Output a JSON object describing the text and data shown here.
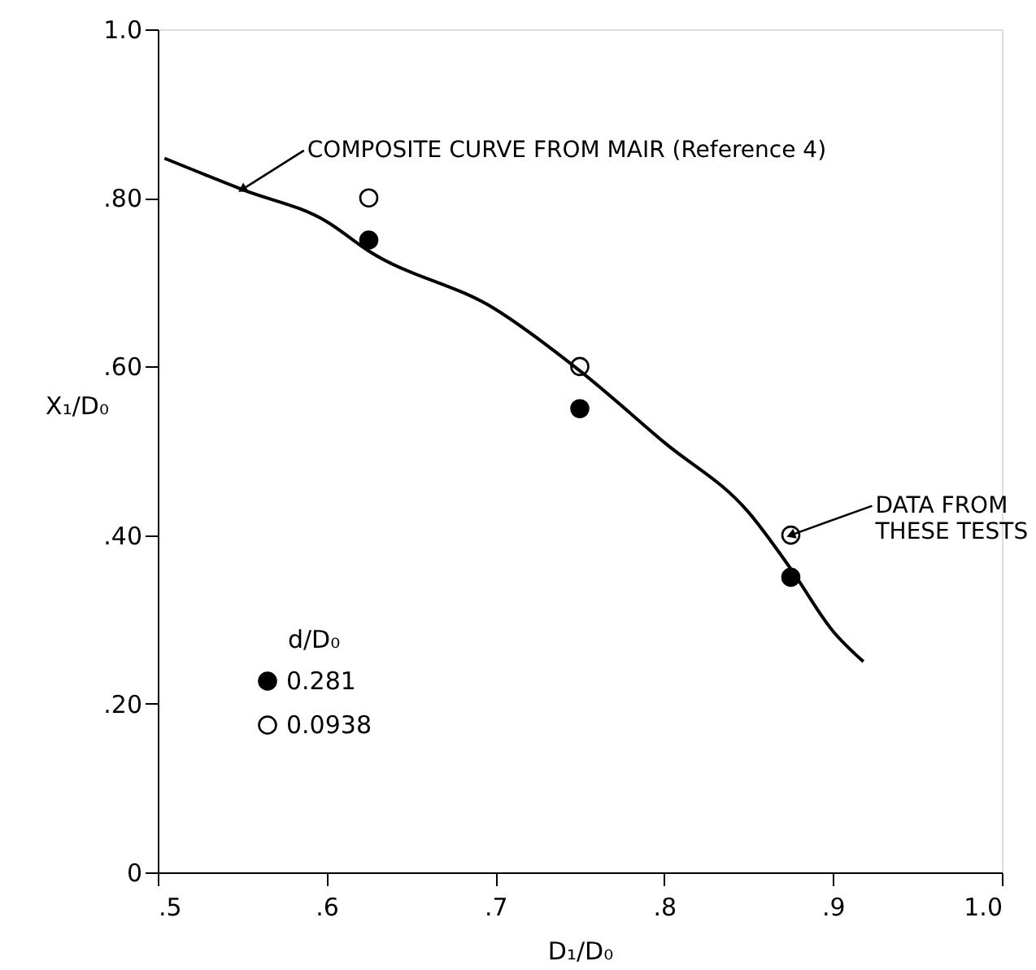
{
  "chart_data": {
    "type": "scatter",
    "xlabel": "D₁/D₀",
    "ylabel": "X₁/D₀",
    "legend_title": "d/D₀",
    "legend": "bottom left",
    "grid": false,
    "marker": "circle",
    "xlim": [
      0.5,
      1.0
    ],
    "ylim": [
      0,
      1.0
    ],
    "xticks": [
      {
        "value": 0.5,
        "label": ".5"
      },
      {
        "value": 0.6,
        "label": ".6"
      },
      {
        "value": 0.7,
        "label": ".7"
      },
      {
        "value": 0.8,
        "label": ".8"
      },
      {
        "value": 0.9,
        "label": ".9"
      },
      {
        "value": 1.0,
        "label": "1.0"
      }
    ],
    "yticks": [
      0,
      {
        "value": 0.2,
        "label": ".20"
      },
      {
        "value": 0.4,
        "label": ".40"
      },
      {
        "value": 0.6,
        "label": ".60"
      },
      {
        "value": 0.8,
        "label": ".80"
      },
      {
        "value": 1.0,
        "label": "1.0"
      }
    ],
    "series": [
      {
        "name": "0.281",
        "color": "#000000",
        "x": [
          0.625,
          0.75,
          0.875
        ],
        "values": [
          0.75,
          0.55,
          0.35
        ]
      },
      {
        "name": "0.0938",
        "color": "#000000",
        "x": [
          0.625,
          0.75,
          0.875
        ],
        "values": [
          0.8,
          0.6,
          0.4
        ]
      },
      {
        "type": "line",
        "color": "#000000",
        "line_style": "solid",
        "marker": "none",
        "x": [
          0.504,
          0.55,
          0.6,
          0.625,
          0.7,
          0.75,
          0.8,
          0.85,
          0.875,
          0.9,
          0.918
        ],
        "values": [
          0.847,
          0.81,
          0.772,
          0.737,
          0.668,
          0.595,
          0.51,
          0.427,
          0.36,
          0.286,
          0.25
        ]
      }
    ],
    "annotations": [
      {
        "text": "COMPOSITE CURVE FROM MAIR (Reference 4)",
        "x": 0.55,
        "y": 0.81
      },
      {
        "text": "DATA FROM\nTHESE TESTS",
        "x": 0.875,
        "y": 0.4
      }
    ]
  }
}
